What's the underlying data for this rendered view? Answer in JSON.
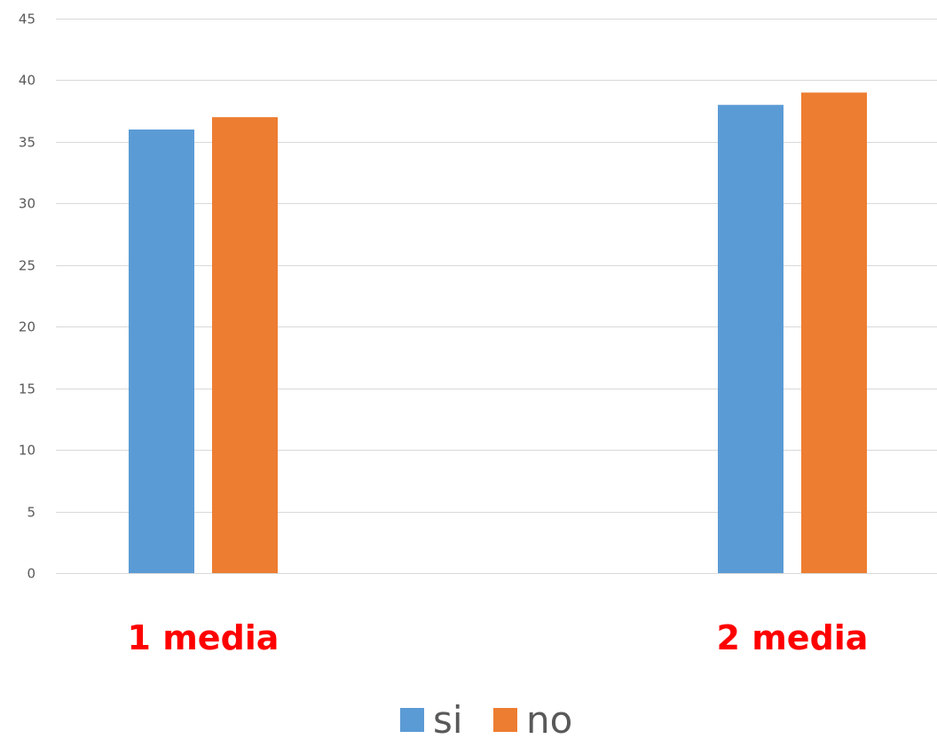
{
  "chart_data": {
    "type": "bar",
    "categories": [
      "1 media",
      "2 media"
    ],
    "series": [
      {
        "name": "si",
        "values": [
          36,
          38
        ],
        "color": "#5B9BD5"
      },
      {
        "name": "no",
        "values": [
          37,
          39
        ],
        "color": "#ED7D31"
      }
    ],
    "ylim": [
      0,
      45
    ],
    "yticks": [
      "0",
      "5",
      "10",
      "15",
      "20",
      "25",
      "30",
      "35",
      "40",
      "45"
    ],
    "grid": true,
    "legend_position": "bottom",
    "category_label_color": "#FF0000",
    "gridline_color": "#D9D9D9",
    "title": "",
    "xlabel": "",
    "ylabel": ""
  }
}
